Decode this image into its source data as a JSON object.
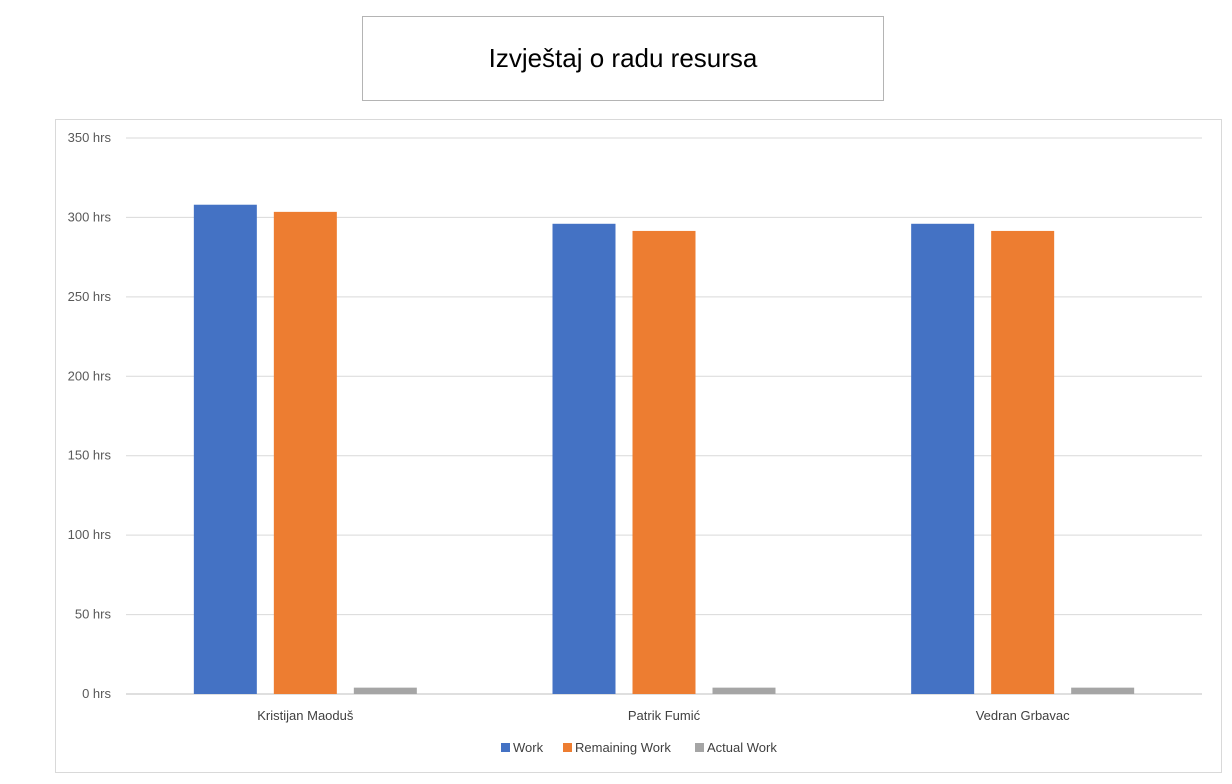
{
  "page_title": "Izvještaj o radu resursa",
  "chart_data": {
    "type": "bar",
    "title": "Izvještaj o radu resursa",
    "xlabel": "",
    "ylabel": "",
    "categories": [
      "Kristijan Maoduš",
      "Patrik Fumić",
      "Vedran Grbavac"
    ],
    "series": [
      {
        "name": "Work",
        "color": "#4472C4",
        "values": [
          308,
          296,
          296
        ]
      },
      {
        "name": "Remaining Work",
        "color": "#ED7D31",
        "values": [
          303.5,
          291.5,
          291.5
        ]
      },
      {
        "name": "Actual Work",
        "color": "#A5A5A5",
        "values": [
          4,
          4,
          4
        ]
      }
    ],
    "ylim": [
      0,
      350
    ],
    "yticks": [
      0,
      50,
      100,
      150,
      200,
      250,
      300,
      350
    ],
    "ytick_labels": [
      "0 hrs",
      "50 hrs",
      "100 hrs",
      "150 hrs",
      "200 hrs",
      "250 hrs",
      "300 hrs",
      "350 hrs"
    ],
    "grid": true,
    "legend_position": "bottom"
  }
}
